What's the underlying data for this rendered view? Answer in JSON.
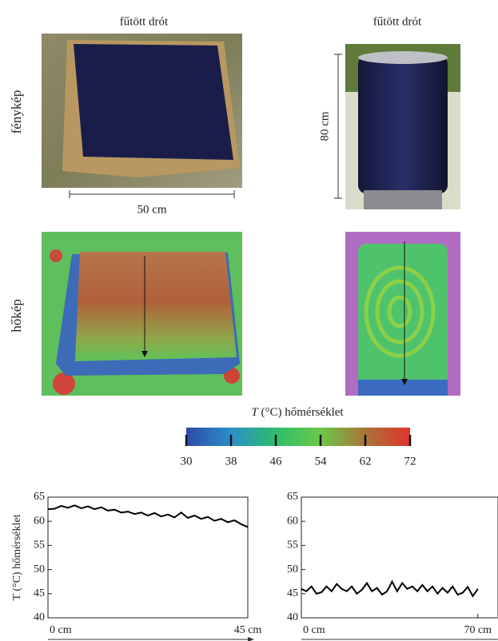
{
  "figure": {
    "columns": [
      "fűtött drót",
      "fűtött drót"
    ],
    "rows": [
      "fénykép",
      "hőkép"
    ],
    "scale_horizontal": "50 cm",
    "scale_vertical": "80 cm",
    "colorbar": {
      "title_symbol": "T",
      "title_rest": "(°C) hőmérséklet",
      "ticks": [
        30,
        38,
        46,
        54,
        62,
        72
      ]
    }
  },
  "chart_data": [
    {
      "type": "line",
      "ylabel": "T (°C) hőmérséklet",
      "color": "#000000",
      "x": [
        0,
        1.5,
        3,
        4.5,
        6,
        7.5,
        9,
        10.5,
        12,
        13.5,
        15,
        16.5,
        18,
        19.5,
        21,
        22.5,
        24,
        25.5,
        27,
        28.5,
        30,
        31.5,
        33,
        34.5,
        36,
        37.5,
        39,
        40.5,
        42,
        43.5,
        45
      ],
      "values": [
        62.5,
        62.6,
        63.2,
        62.8,
        63.3,
        62.7,
        63.1,
        62.5,
        62.9,
        62.2,
        62.4,
        61.8,
        62.0,
        61.5,
        61.8,
        61.2,
        61.7,
        61.0,
        61.4,
        60.8,
        61.8,
        60.7,
        61.2,
        60.5,
        60.9,
        60.1,
        60.5,
        59.8,
        60.2,
        59.4,
        58.8
      ],
      "xlim": [
        0,
        45
      ],
      "ylim": [
        40,
        65
      ],
      "xticks": [
        {
          "value": 0,
          "label": "0 cm"
        },
        {
          "value": 45,
          "label": "45 cm"
        }
      ],
      "yticks": [
        40,
        45,
        50,
        55,
        60,
        65
      ]
    },
    {
      "type": "line",
      "color": "#000000",
      "x": [
        0,
        2,
        4,
        6,
        8,
        10,
        12,
        14,
        16,
        18,
        20,
        22,
        24,
        26,
        28,
        30,
        32,
        34,
        36,
        38,
        40,
        42,
        44,
        46,
        48,
        50,
        52,
        54,
        56,
        58,
        60,
        62,
        64,
        66,
        68,
        70
      ],
      "values": [
        46,
        45.5,
        46.5,
        45,
        45.3,
        46.5,
        45.5,
        47.0,
        46,
        45.5,
        46.5,
        45,
        45.8,
        47.2,
        45.5,
        46.2,
        44.8,
        45.5,
        47.5,
        45.5,
        47.2,
        46,
        46.5,
        45.5,
        46.8,
        45.5,
        46.5,
        45,
        46.2,
        45.2,
        46.5,
        44.8,
        45.2,
        46.4,
        44.5,
        46
      ],
      "xlim": [
        0,
        78
      ],
      "ylim": [
        40,
        65
      ],
      "xticks": [
        {
          "value": 0,
          "label": "0 cm"
        },
        {
          "value": 70,
          "label": "70 cm"
        }
      ],
      "yticks": [
        40,
        45,
        50,
        55,
        60,
        65
      ]
    }
  ]
}
